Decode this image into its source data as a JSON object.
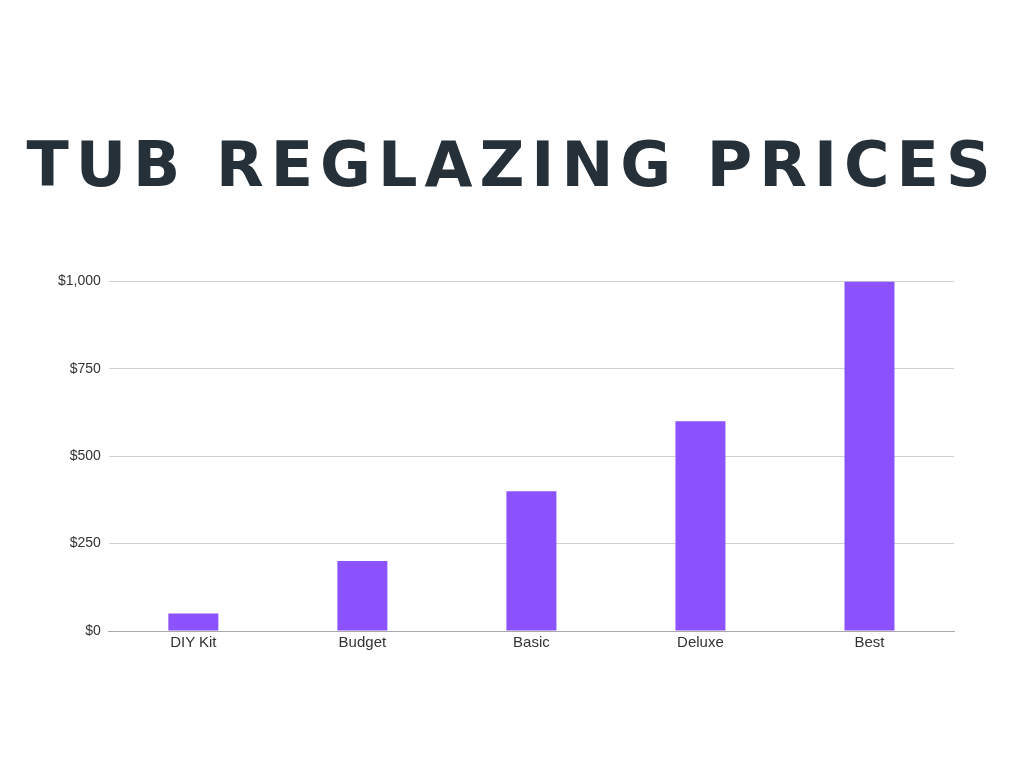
{
  "chart_data": {
    "type": "bar",
    "title": "TUB REGLAZING PRICES",
    "categories": [
      "DIY Kit",
      "Budget",
      "Basic",
      "Deluxe",
      "Best"
    ],
    "values": [
      50,
      200,
      400,
      600,
      1000
    ],
    "color": "#8c52ff",
    "ylim": [
      0,
      1000
    ],
    "yticks": [
      {
        "value": 0,
        "label": "$0"
      },
      {
        "value": 250,
        "label": "$250"
      },
      {
        "value": 500,
        "label": "$500"
      },
      {
        "value": 750,
        "label": "$750"
      },
      {
        "value": 1000,
        "label": "$1,000"
      }
    ],
    "grid": "y"
  }
}
